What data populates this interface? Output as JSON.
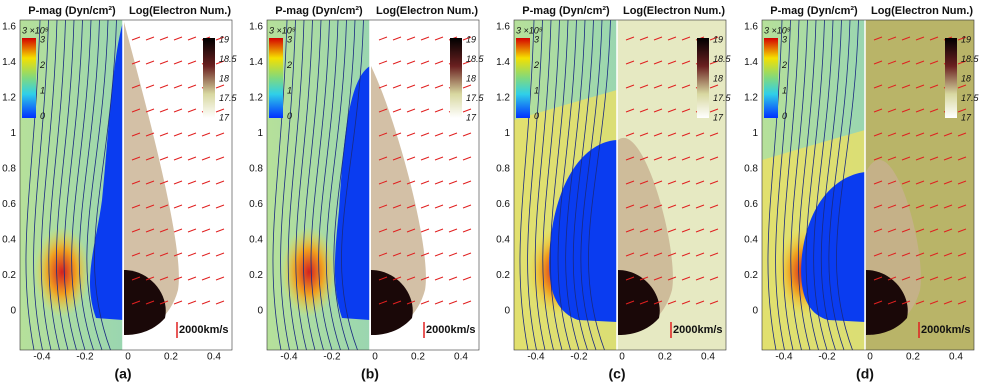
{
  "left_title": "P-mag (Dyn/cm²)",
  "right_title": "Log(Electron Num.)",
  "left_colorbar": {
    "exponent_label": "3 ×10⁹",
    "ticks": [
      "3",
      "2",
      "1",
      "0"
    ]
  },
  "right_colorbar": {
    "ticks": [
      "19",
      "18.5",
      "18",
      "17.5",
      "17"
    ]
  },
  "x_ticks": [
    "-0.4",
    "-0.2",
    "0",
    "0.2",
    "0.4"
  ],
  "y_ticks": [
    "1.6",
    "1.4",
    "1.2",
    "1",
    "0.8",
    "0.6",
    "0.4",
    "0.2",
    "0"
  ],
  "scale_label": "2000km/s",
  "panels": [
    {
      "label": "(a)"
    },
    {
      "label": "(b)"
    },
    {
      "label": "(c)"
    },
    {
      "label": "(d)"
    }
  ]
}
